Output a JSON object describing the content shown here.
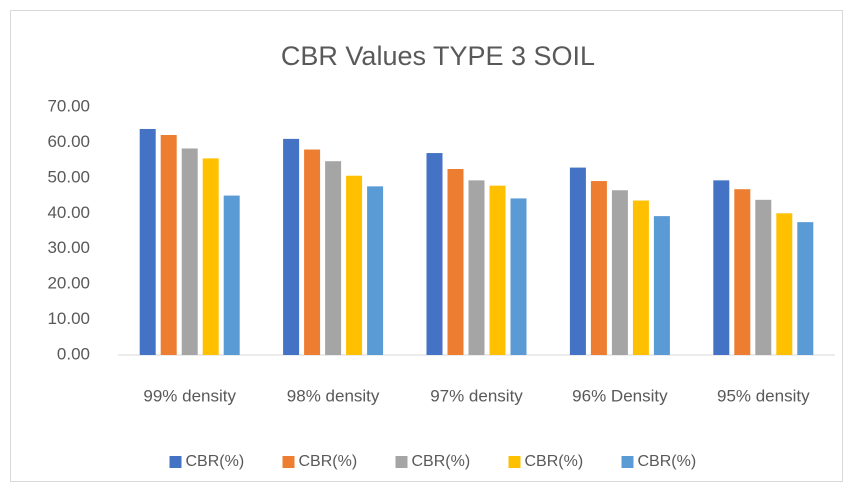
{
  "chart_data": {
    "type": "bar",
    "title": "CBR Values TYPE 3 SOIL",
    "categories": [
      "99% density",
      "98% density",
      "97% density",
      "96% Density",
      "95% density"
    ],
    "series": [
      {
        "name": "CBR(%)",
        "color": "#4472c4",
        "values": [
          63.8,
          61.0,
          57.0,
          52.9,
          49.3
        ]
      },
      {
        "name": "CBR(%)",
        "color": "#ed7d31",
        "values": [
          62.1,
          58.0,
          52.5,
          49.1,
          46.8
        ]
      },
      {
        "name": "CBR(%)",
        "color": "#a5a5a5",
        "values": [
          58.3,
          54.7,
          49.3,
          46.5,
          43.8
        ]
      },
      {
        "name": "CBR(%)",
        "color": "#ffc000",
        "values": [
          55.5,
          50.6,
          47.8,
          43.6,
          40.0
        ]
      },
      {
        "name": "CBR(%)",
        "color": "#5b9bd5",
        "values": [
          45.0,
          47.6,
          44.2,
          39.2,
          37.5
        ]
      }
    ],
    "ylim": [
      0,
      70
    ],
    "yticks": [
      {
        "value": 0,
        "label": "0.00"
      },
      {
        "value": 10,
        "label": "10.00"
      },
      {
        "value": 20,
        "label": "20.00"
      },
      {
        "value": 30,
        "label": "30.00"
      },
      {
        "value": 40,
        "label": "40.00"
      },
      {
        "value": 50,
        "label": "50.00"
      },
      {
        "value": 60,
        "label": "60.00"
      },
      {
        "value": 70,
        "label": "70.00"
      }
    ],
    "grid": false,
    "legend": "bottom"
  }
}
